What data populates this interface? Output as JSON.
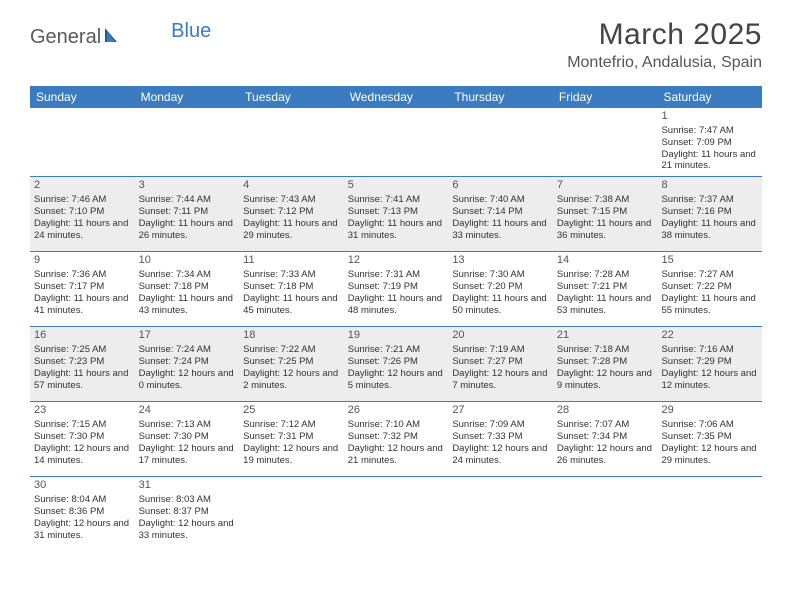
{
  "logo": {
    "text1": "General",
    "text2": "Blue"
  },
  "title": "March 2025",
  "location": "Montefrio, Andalusia, Spain",
  "colors": {
    "header_bar": "#3b7bbf",
    "shaded_cell": "#ededed",
    "text": "#333333",
    "border": "#3b7bbf"
  },
  "fonts": {
    "title_size": 30,
    "location_size": 16,
    "dayhead_size": 12,
    "cell_size": 9.5
  },
  "day_headers": [
    "Sunday",
    "Monday",
    "Tuesday",
    "Wednesday",
    "Thursday",
    "Friday",
    "Saturday"
  ],
  "weeks": [
    [
      {
        "n": "",
        "sr": "",
        "ss": "",
        "dh": "",
        "dm": "",
        "empty": true
      },
      {
        "n": "",
        "sr": "",
        "ss": "",
        "dh": "",
        "dm": "",
        "empty": true
      },
      {
        "n": "",
        "sr": "",
        "ss": "",
        "dh": "",
        "dm": "",
        "empty": true
      },
      {
        "n": "",
        "sr": "",
        "ss": "",
        "dh": "",
        "dm": "",
        "empty": true
      },
      {
        "n": "",
        "sr": "",
        "ss": "",
        "dh": "",
        "dm": "",
        "empty": true
      },
      {
        "n": "",
        "sr": "",
        "ss": "",
        "dh": "",
        "dm": "",
        "empty": true
      },
      {
        "n": "1",
        "sr": "7:47 AM",
        "ss": "7:09 PM",
        "dh": "11",
        "dm": "21"
      }
    ],
    [
      {
        "n": "2",
        "sr": "7:46 AM",
        "ss": "7:10 PM",
        "dh": "11",
        "dm": "24"
      },
      {
        "n": "3",
        "sr": "7:44 AM",
        "ss": "7:11 PM",
        "dh": "11",
        "dm": "26"
      },
      {
        "n": "4",
        "sr": "7:43 AM",
        "ss": "7:12 PM",
        "dh": "11",
        "dm": "29"
      },
      {
        "n": "5",
        "sr": "7:41 AM",
        "ss": "7:13 PM",
        "dh": "11",
        "dm": "31"
      },
      {
        "n": "6",
        "sr": "7:40 AM",
        "ss": "7:14 PM",
        "dh": "11",
        "dm": "33"
      },
      {
        "n": "7",
        "sr": "7:38 AM",
        "ss": "7:15 PM",
        "dh": "11",
        "dm": "36"
      },
      {
        "n": "8",
        "sr": "7:37 AM",
        "ss": "7:16 PM",
        "dh": "11",
        "dm": "38"
      }
    ],
    [
      {
        "n": "9",
        "sr": "7:36 AM",
        "ss": "7:17 PM",
        "dh": "11",
        "dm": "41"
      },
      {
        "n": "10",
        "sr": "7:34 AM",
        "ss": "7:18 PM",
        "dh": "11",
        "dm": "43"
      },
      {
        "n": "11",
        "sr": "7:33 AM",
        "ss": "7:18 PM",
        "dh": "11",
        "dm": "45"
      },
      {
        "n": "12",
        "sr": "7:31 AM",
        "ss": "7:19 PM",
        "dh": "11",
        "dm": "48"
      },
      {
        "n": "13",
        "sr": "7:30 AM",
        "ss": "7:20 PM",
        "dh": "11",
        "dm": "50"
      },
      {
        "n": "14",
        "sr": "7:28 AM",
        "ss": "7:21 PM",
        "dh": "11",
        "dm": "53"
      },
      {
        "n": "15",
        "sr": "7:27 AM",
        "ss": "7:22 PM",
        "dh": "11",
        "dm": "55"
      }
    ],
    [
      {
        "n": "16",
        "sr": "7:25 AM",
        "ss": "7:23 PM",
        "dh": "11",
        "dm": "57"
      },
      {
        "n": "17",
        "sr": "7:24 AM",
        "ss": "7:24 PM",
        "dh": "12",
        "dm": "0"
      },
      {
        "n": "18",
        "sr": "7:22 AM",
        "ss": "7:25 PM",
        "dh": "12",
        "dm": "2"
      },
      {
        "n": "19",
        "sr": "7:21 AM",
        "ss": "7:26 PM",
        "dh": "12",
        "dm": "5"
      },
      {
        "n": "20",
        "sr": "7:19 AM",
        "ss": "7:27 PM",
        "dh": "12",
        "dm": "7"
      },
      {
        "n": "21",
        "sr": "7:18 AM",
        "ss": "7:28 PM",
        "dh": "12",
        "dm": "9"
      },
      {
        "n": "22",
        "sr": "7:16 AM",
        "ss": "7:29 PM",
        "dh": "12",
        "dm": "12"
      }
    ],
    [
      {
        "n": "23",
        "sr": "7:15 AM",
        "ss": "7:30 PM",
        "dh": "12",
        "dm": "14"
      },
      {
        "n": "24",
        "sr": "7:13 AM",
        "ss": "7:30 PM",
        "dh": "12",
        "dm": "17"
      },
      {
        "n": "25",
        "sr": "7:12 AM",
        "ss": "7:31 PM",
        "dh": "12",
        "dm": "19"
      },
      {
        "n": "26",
        "sr": "7:10 AM",
        "ss": "7:32 PM",
        "dh": "12",
        "dm": "21"
      },
      {
        "n": "27",
        "sr": "7:09 AM",
        "ss": "7:33 PM",
        "dh": "12",
        "dm": "24"
      },
      {
        "n": "28",
        "sr": "7:07 AM",
        "ss": "7:34 PM",
        "dh": "12",
        "dm": "26"
      },
      {
        "n": "29",
        "sr": "7:06 AM",
        "ss": "7:35 PM",
        "dh": "12",
        "dm": "29"
      }
    ],
    [
      {
        "n": "30",
        "sr": "8:04 AM",
        "ss": "8:36 PM",
        "dh": "12",
        "dm": "31"
      },
      {
        "n": "31",
        "sr": "8:03 AM",
        "ss": "8:37 PM",
        "dh": "12",
        "dm": "33"
      },
      {
        "n": "",
        "sr": "",
        "ss": "",
        "dh": "",
        "dm": "",
        "empty": true
      },
      {
        "n": "",
        "sr": "",
        "ss": "",
        "dh": "",
        "dm": "",
        "empty": true
      },
      {
        "n": "",
        "sr": "",
        "ss": "",
        "dh": "",
        "dm": "",
        "empty": true
      },
      {
        "n": "",
        "sr": "",
        "ss": "",
        "dh": "",
        "dm": "",
        "empty": true
      },
      {
        "n": "",
        "sr": "",
        "ss": "",
        "dh": "",
        "dm": "",
        "empty": true
      }
    ]
  ],
  "labels": {
    "sunrise": "Sunrise:",
    "sunset": "Sunset:",
    "daylight_prefix": "Daylight:",
    "hours_word": "hours",
    "and_word": "and",
    "minutes_word": "minutes."
  }
}
